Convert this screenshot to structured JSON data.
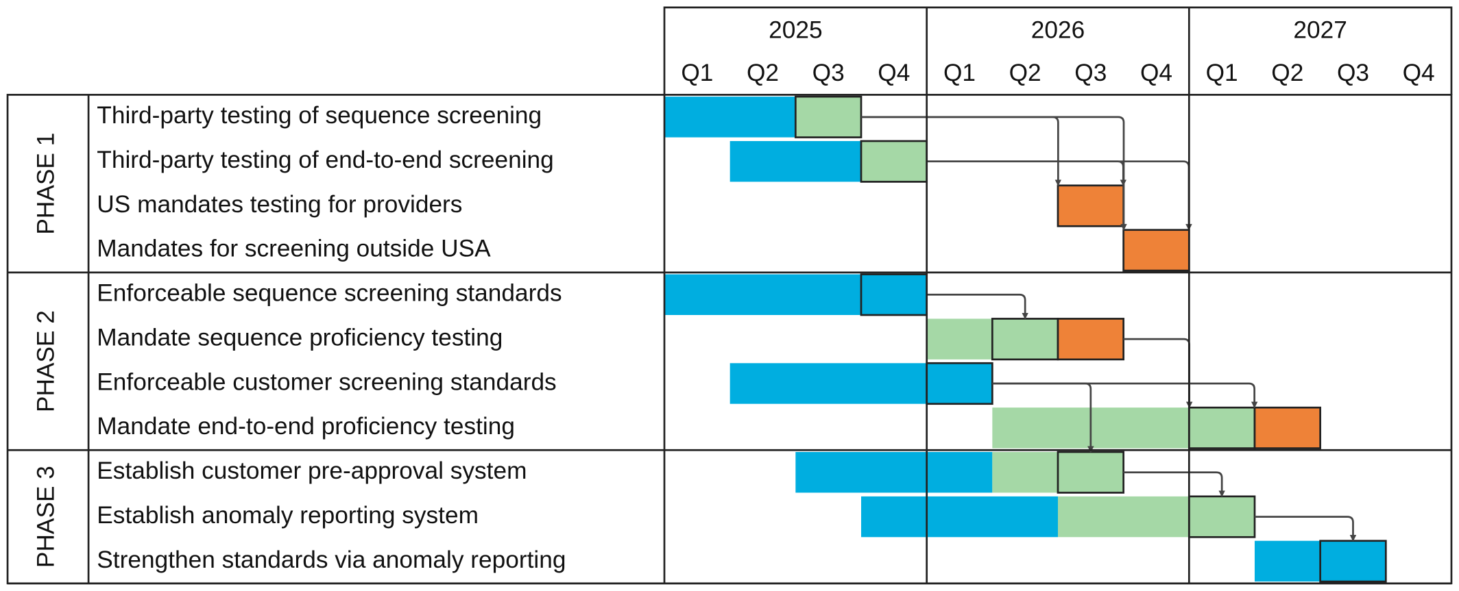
{
  "chart_data": {
    "type": "gantt",
    "years": [
      "2025",
      "2026",
      "2027"
    ],
    "quarters": [
      "Q1",
      "Q2",
      "Q3",
      "Q4",
      "Q1",
      "Q2",
      "Q3",
      "Q4",
      "Q1",
      "Q2",
      "Q3",
      "Q4"
    ],
    "phases": [
      {
        "name": "PHASE 1",
        "tasks": [
          {
            "name": "Third-party testing of sequence screening",
            "segments": [
              {
                "start": 0,
                "end": 2,
                "color": "#00aee0"
              },
              {
                "start": 2,
                "end": 3,
                "color": "#a5d8a6",
                "outlined": true
              }
            ]
          },
          {
            "name": "Third-party testing of end-to-end screening",
            "segments": [
              {
                "start": 1,
                "end": 3,
                "color": "#00aee0"
              },
              {
                "start": 3,
                "end": 4,
                "color": "#a5d8a6",
                "outlined": true
              }
            ]
          },
          {
            "name": "US mandates testing for providers",
            "segments": [
              {
                "start": 6,
                "end": 7,
                "color": "#ee8238",
                "outlined": true
              }
            ]
          },
          {
            "name": "Mandates for screening outside USA",
            "segments": [
              {
                "start": 7,
                "end": 8,
                "color": "#ee8238",
                "outlined": true
              }
            ]
          }
        ]
      },
      {
        "name": "PHASE 2",
        "tasks": [
          {
            "name": "Enforceable sequence screening standards",
            "segments": [
              {
                "start": 0,
                "end": 3,
                "color": "#00aee0"
              },
              {
                "start": 3,
                "end": 4,
                "color": "#00aee0",
                "outlined": true
              }
            ]
          },
          {
            "name": "Mandate sequence proficiency testing",
            "segments": [
              {
                "start": 4,
                "end": 5,
                "color": "#a5d8a6"
              },
              {
                "start": 5,
                "end": 6,
                "color": "#a5d8a6",
                "outlined": true
              },
              {
                "start": 6,
                "end": 7,
                "color": "#ee8238",
                "outlined": true
              }
            ]
          },
          {
            "name": "Enforceable customer screening standards",
            "segments": [
              {
                "start": 1,
                "end": 4,
                "color": "#00aee0"
              },
              {
                "start": 4,
                "end": 5,
                "color": "#00aee0",
                "outlined": true
              }
            ]
          },
          {
            "name": "Mandate end-to-end proficiency testing",
            "segments": [
              {
                "start": 5,
                "end": 8,
                "color": "#a5d8a6"
              },
              {
                "start": 8,
                "end": 9,
                "color": "#a5d8a6",
                "outlined": true
              },
              {
                "start": 9,
                "end": 10,
                "color": "#ee8238",
                "outlined": true
              }
            ]
          }
        ]
      },
      {
        "name": "PHASE 3",
        "tasks": [
          {
            "name": "Establish customer pre-approval system",
            "segments": [
              {
                "start": 2,
                "end": 5,
                "color": "#00aee0"
              },
              {
                "start": 5,
                "end": 6,
                "color": "#a5d8a6"
              },
              {
                "start": 6,
                "end": 7,
                "color": "#a5d8a6",
                "outlined": true
              }
            ]
          },
          {
            "name": "Establish anomaly reporting system",
            "segments": [
              {
                "start": 3,
                "end": 6,
                "color": "#00aee0"
              },
              {
                "start": 6,
                "end": 8,
                "color": "#a5d8a6"
              },
              {
                "start": 8,
                "end": 9,
                "color": "#a5d8a6",
                "outlined": true
              }
            ]
          },
          {
            "name": "Strengthen standards via anomaly reporting",
            "segments": [
              {
                "start": 9,
                "end": 10,
                "color": "#00aee0"
              },
              {
                "start": 10,
                "end": 11,
                "color": "#00aee0",
                "outlined": true
              }
            ]
          }
        ]
      }
    ],
    "links": [
      {
        "from": [
          0,
          0
        ],
        "to": [
          0,
          2
        ]
      },
      {
        "from": [
          0,
          0
        ],
        "to": [
          0,
          3
        ]
      },
      {
        "from": [
          0,
          1
        ],
        "to": [
          0,
          2
        ]
      },
      {
        "from": [
          0,
          1
        ],
        "to": [
          0,
          3
        ]
      },
      {
        "from": [
          1,
          0
        ],
        "to": [
          1,
          1
        ]
      },
      {
        "from": [
          1,
          1
        ],
        "to": [
          1,
          3
        ]
      },
      {
        "from": [
          1,
          2
        ],
        "to": [
          1,
          3
        ]
      },
      {
        "from": [
          1,
          2
        ],
        "to": [
          2,
          0
        ]
      },
      {
        "from": [
          2,
          0
        ],
        "to": [
          2,
          1
        ]
      },
      {
        "from": [
          2,
          1
        ],
        "to": [
          2,
          2
        ]
      }
    ]
  }
}
